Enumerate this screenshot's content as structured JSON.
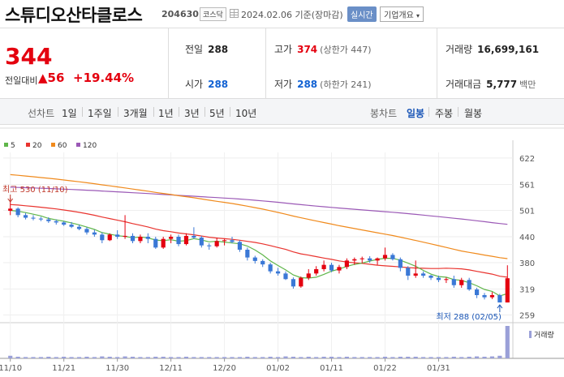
{
  "header": {
    "stock_name": "스튜디오산타클로스",
    "stock_code": "204630",
    "market": "코스닥",
    "date_text": "2024.02.06 기준(장마감)",
    "realtime_label": "실시간",
    "company_label": "기업개요"
  },
  "quote": {
    "price": "344",
    "change_label": "전일대비",
    "change_value": "▲56",
    "change_pct": "+19.44%",
    "prev_label": "전일",
    "prev_value": "288",
    "high_label": "고가",
    "high_value": "374",
    "high_limit": "(상한가 447)",
    "volume_label": "거래량",
    "volume_value": "16,699,161",
    "open_label": "시가",
    "open_value": "288",
    "low_label": "저가",
    "low_value": "288",
    "low_limit": "(하한가 241)",
    "amount_label": "거래대금",
    "amount_value": "5,777",
    "amount_unit": "백만"
  },
  "tabs": {
    "line_head": "선차트",
    "line_items": [
      "1일",
      "1주일",
      "3개월",
      "1년",
      "3년",
      "5년",
      "10년"
    ],
    "candle_head": "봉차트",
    "candle_items": [
      "일봉",
      "주봉",
      "월봉"
    ],
    "candle_active": "일봉"
  },
  "colors": {
    "up": "#e4000f",
    "down": "#3a78d6",
    "ma5": "#5fb64a",
    "ma20": "#e9332e",
    "ma60": "#f08a1c",
    "ma120": "#9b59b6",
    "volume": "#9aa0d8"
  },
  "chart_data": {
    "type": "candlestick",
    "legend": [
      {
        "name": "5",
        "color": "#5fb64a"
      },
      {
        "name": "20",
        "color": "#e9332e"
      },
      {
        "name": "60",
        "color": "#f08a1c"
      },
      {
        "name": "120",
        "color": "#9b59b6"
      }
    ],
    "y_ticks": [
      622,
      561,
      501,
      440,
      380,
      319,
      259
    ],
    "ylim": [
      245,
      635
    ],
    "x_ticks": [
      {
        "label": "11/10",
        "index": 0
      },
      {
        "label": "11/21",
        "index": 7
      },
      {
        "label": "11/30",
        "index": 14
      },
      {
        "label": "12/11",
        "index": 21
      },
      {
        "label": "12/20",
        "index": 28
      },
      {
        "label": "01/02",
        "index": 35
      },
      {
        "label": "01/11",
        "index": 42
      },
      {
        "label": "01/22",
        "index": 49
      },
      {
        "label": "01/31",
        "index": 56
      }
    ],
    "high_annotation": "최고 530 (11/10)",
    "low_annotation": "최저 288 (02/05)",
    "volume_label": "거래량",
    "candles": [
      [
        500,
        530,
        490,
        505
      ],
      [
        505,
        508,
        485,
        490
      ],
      [
        490,
        495,
        480,
        484
      ],
      [
        484,
        490,
        478,
        482
      ],
      [
        482,
        486,
        476,
        480
      ],
      [
        480,
        485,
        472,
        476
      ],
      [
        476,
        480,
        468,
        473
      ],
      [
        473,
        476,
        465,
        468
      ],
      [
        468,
        474,
        460,
        463
      ],
      [
        463,
        468,
        455,
        458
      ],
      [
        458,
        462,
        445,
        450
      ],
      [
        450,
        456,
        440,
        445
      ],
      [
        445,
        450,
        425,
        432
      ],
      [
        432,
        448,
        430,
        445
      ],
      [
        445,
        455,
        435,
        440
      ],
      [
        440,
        490,
        435,
        442
      ],
      [
        442,
        448,
        425,
        430
      ],
      [
        430,
        445,
        425,
        440
      ],
      [
        440,
        448,
        425,
        435
      ],
      [
        435,
        440,
        412,
        415
      ],
      [
        415,
        440,
        412,
        435
      ],
      [
        435,
        445,
        425,
        440
      ],
      [
        440,
        445,
        418,
        423
      ],
      [
        423,
        448,
        420,
        442
      ],
      [
        442,
        462,
        435,
        438
      ],
      [
        438,
        442,
        415,
        420
      ],
      [
        420,
        425,
        410,
        418
      ],
      [
        418,
        438,
        415,
        430
      ],
      [
        430,
        435,
        420,
        432
      ],
      [
        432,
        440,
        425,
        428
      ],
      [
        428,
        432,
        405,
        410
      ],
      [
        410,
        415,
        385,
        392
      ],
      [
        392,
        396,
        378,
        384
      ],
      [
        384,
        388,
        370,
        376
      ],
      [
        376,
        380,
        355,
        360
      ],
      [
        360,
        368,
        350,
        355
      ],
      [
        355,
        360,
        340,
        342
      ],
      [
        342,
        346,
        320,
        325
      ],
      [
        325,
        348,
        322,
        345
      ],
      [
        345,
        365,
        340,
        355
      ],
      [
        355,
        372,
        350,
        365
      ],
      [
        365,
        385,
        360,
        375
      ],
      [
        375,
        380,
        358,
        362
      ],
      [
        362,
        375,
        355,
        370
      ],
      [
        370,
        390,
        365,
        385
      ],
      [
        385,
        392,
        375,
        388
      ],
      [
        388,
        394,
        378,
        390
      ],
      [
        390,
        395,
        380,
        385
      ],
      [
        385,
        392,
        375,
        390
      ],
      [
        390,
        415,
        385,
        398
      ],
      [
        398,
        402,
        385,
        388
      ],
      [
        388,
        392,
        360,
        368
      ],
      [
        368,
        372,
        340,
        350
      ],
      [
        350,
        385,
        345,
        355
      ],
      [
        355,
        360,
        345,
        350
      ],
      [
        350,
        352,
        340,
        345
      ],
      [
        345,
        350,
        335,
        340
      ],
      [
        340,
        346,
        333,
        342
      ],
      [
        342,
        350,
        322,
        328
      ],
      [
        328,
        345,
        322,
        340
      ],
      [
        340,
        345,
        315,
        318
      ],
      [
        318,
        322,
        298,
        305
      ],
      [
        305,
        310,
        295,
        300
      ],
      [
        300,
        312,
        296,
        305
      ],
      [
        305,
        308,
        288,
        288
      ],
      [
        288,
        374,
        288,
        344
      ]
    ],
    "volumes": [
      0.08,
      0.05,
      0.04,
      0.04,
      0.04,
      0.05,
      0.04,
      0.05,
      0.04,
      0.04,
      0.05,
      0.04,
      0.06,
      0.05,
      0.04,
      0.06,
      0.05,
      0.04,
      0.04,
      0.05,
      0.05,
      0.04,
      0.04,
      0.05,
      0.04,
      0.04,
      0.04,
      0.04,
      0.04,
      0.04,
      0.04,
      0.05,
      0.04,
      0.04,
      0.05,
      0.04,
      0.06,
      0.05,
      0.04,
      0.05,
      0.04,
      0.05,
      0.05,
      0.04,
      0.05,
      0.04,
      0.04,
      0.04,
      0.04,
      0.05,
      0.04,
      0.05,
      0.05,
      0.05,
      0.04,
      0.04,
      0.04,
      0.04,
      0.05,
      0.04,
      0.05,
      0.06,
      0.05,
      0.06,
      0.08,
      1.0
    ]
  }
}
